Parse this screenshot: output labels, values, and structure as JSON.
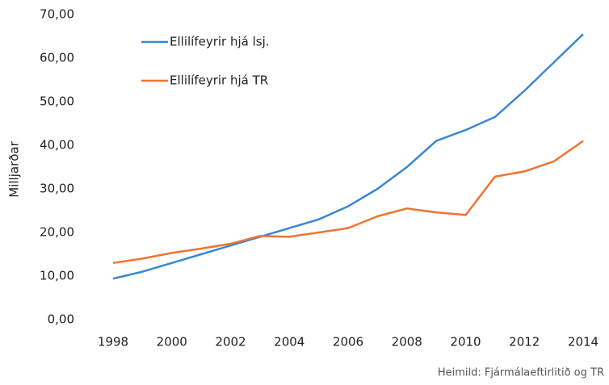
{
  "chart_data": {
    "type": "line",
    "y_label": "Milljarðar",
    "source": "Heimild: Fjármálaeftirlitið og TR",
    "x": [
      1998,
      1999,
      2000,
      2001,
      2002,
      2003,
      2004,
      2005,
      2006,
      2007,
      2008,
      2009,
      2010,
      2011,
      2012,
      2013,
      2014
    ],
    "series": [
      {
        "name": "Ellilífeyrir hjá lsj.",
        "color": "#3a87d6",
        "values": [
          9.4,
          11,
          13,
          15,
          17,
          19,
          21,
          23,
          26,
          30,
          35,
          41,
          43.5,
          46.5,
          52.5,
          59,
          65.5
        ]
      },
      {
        "name": "Ellilífeyrir hjá TR",
        "color": "#ee7431",
        "values": [
          13,
          14,
          15.3,
          16.3,
          17.4,
          19.2,
          19,
          20,
          21,
          23.7,
          25.5,
          24.6,
          24,
          32.8,
          34,
          36.3,
          41
        ]
      }
    ],
    "xlim": [
      1998,
      2014
    ],
    "xticks": [
      1998,
      2000,
      2002,
      2004,
      2006,
      2008,
      2010,
      2012,
      2014
    ],
    "ylim": [
      0,
      70
    ],
    "yticks": [
      {
        "value": 0,
        "label": "0,00"
      },
      {
        "value": 10,
        "label": "10,00"
      },
      {
        "value": 20,
        "label": "20,00"
      },
      {
        "value": 30,
        "label": "30,00"
      },
      {
        "value": 40,
        "label": "40,00"
      },
      {
        "value": 50,
        "label": "50,00"
      },
      {
        "value": 60,
        "label": "60,00"
      },
      {
        "value": 70,
        "label": "70,00"
      }
    ],
    "grid": false,
    "legend": "top-left"
  }
}
